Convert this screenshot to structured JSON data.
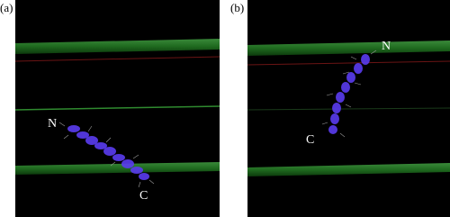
{
  "panels": [
    {
      "label": "(a)",
      "annotations": {
        "n_terminus": "N",
        "c_terminus": "C"
      }
    },
    {
      "label": "(b)",
      "annotations": {
        "n_terminus": "N",
        "c_terminus": "C"
      }
    }
  ]
}
